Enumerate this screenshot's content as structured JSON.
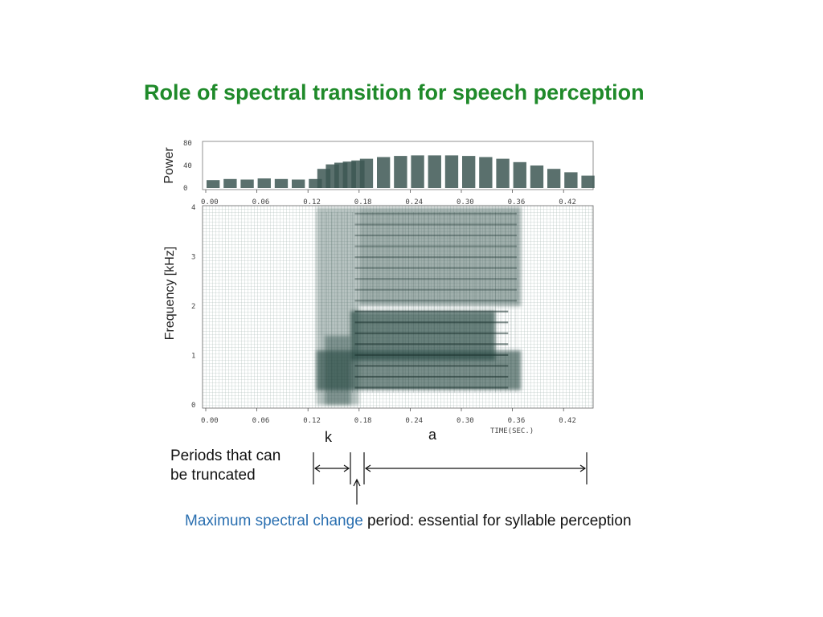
{
  "slide": {
    "title": "Role of spectral transition for speech perception",
    "truncate_note_line1": "Periods that can",
    "truncate_note_line2": "be truncated",
    "segment_k": "k",
    "segment_a": "a",
    "highlight": "Maximum spectral change",
    "note_rest": " period: essential for syllable perception"
  },
  "colors": {
    "title": "#1f8a2a",
    "highlight": "#2a6fb0",
    "spectrogram_ink": "#2f4f4a",
    "grid": "#9fb0ad"
  },
  "chart_data": [
    {
      "type": "bar",
      "ylabel": "Power",
      "ylim": [
        0,
        80
      ],
      "yticks": [
        "80",
        "40",
        "0"
      ],
      "xlim": [
        0,
        0.45
      ],
      "xticks": [
        "0.00",
        "0.06",
        "0.12",
        "0.18",
        "0.24",
        "0.30",
        "0.36",
        "0.42"
      ],
      "x": [
        0.0,
        0.02,
        0.04,
        0.06,
        0.08,
        0.1,
        0.12,
        0.13,
        0.14,
        0.15,
        0.16,
        0.17,
        0.18,
        0.2,
        0.22,
        0.24,
        0.26,
        0.28,
        0.3,
        0.32,
        0.34,
        0.36,
        0.38,
        0.4,
        0.42,
        0.44
      ],
      "values": [
        14,
        16,
        15,
        17,
        16,
        15,
        16,
        34,
        42,
        45,
        47,
        49,
        52,
        55,
        57,
        58,
        58,
        58,
        57,
        55,
        52,
        46,
        40,
        34,
        28,
        22
      ]
    },
    {
      "type": "heatmap",
      "ylabel": "Frequency [kHz]",
      "xlabel": "TIME(SEC.)",
      "ylim": [
        0,
        4
      ],
      "yticks": [
        "4",
        "3",
        "2",
        "1",
        "0"
      ],
      "xlim": [
        0,
        0.45
      ],
      "xticks": [
        "0.00",
        "0.06",
        "0.12",
        "0.18",
        "0.24",
        "0.30",
        "0.36",
        "0.42"
      ],
      "energy_regions": [
        {
          "t": [
            0.13,
            0.37
          ],
          "f": [
            0.3,
            1.1
          ],
          "intensity": 0.85
        },
        {
          "t": [
            0.17,
            0.34
          ],
          "f": [
            0.9,
            1.9
          ],
          "intensity": 0.95
        },
        {
          "t": [
            0.18,
            0.37
          ],
          "f": [
            2.0,
            4.0
          ],
          "intensity": 0.6
        },
        {
          "t": [
            0.13,
            0.18
          ],
          "f": [
            0.0,
            4.0
          ],
          "intensity": 0.45
        },
        {
          "t": [
            0.14,
            0.17
          ],
          "f": [
            0.0,
            1.4
          ],
          "intensity": 0.55
        }
      ],
      "segments": [
        {
          "label": "k",
          "t": [
            0.13,
            0.175
          ]
        },
        {
          "label": "a",
          "t": [
            0.19,
            0.445
          ]
        }
      ],
      "max_change_time": 0.18
    }
  ]
}
